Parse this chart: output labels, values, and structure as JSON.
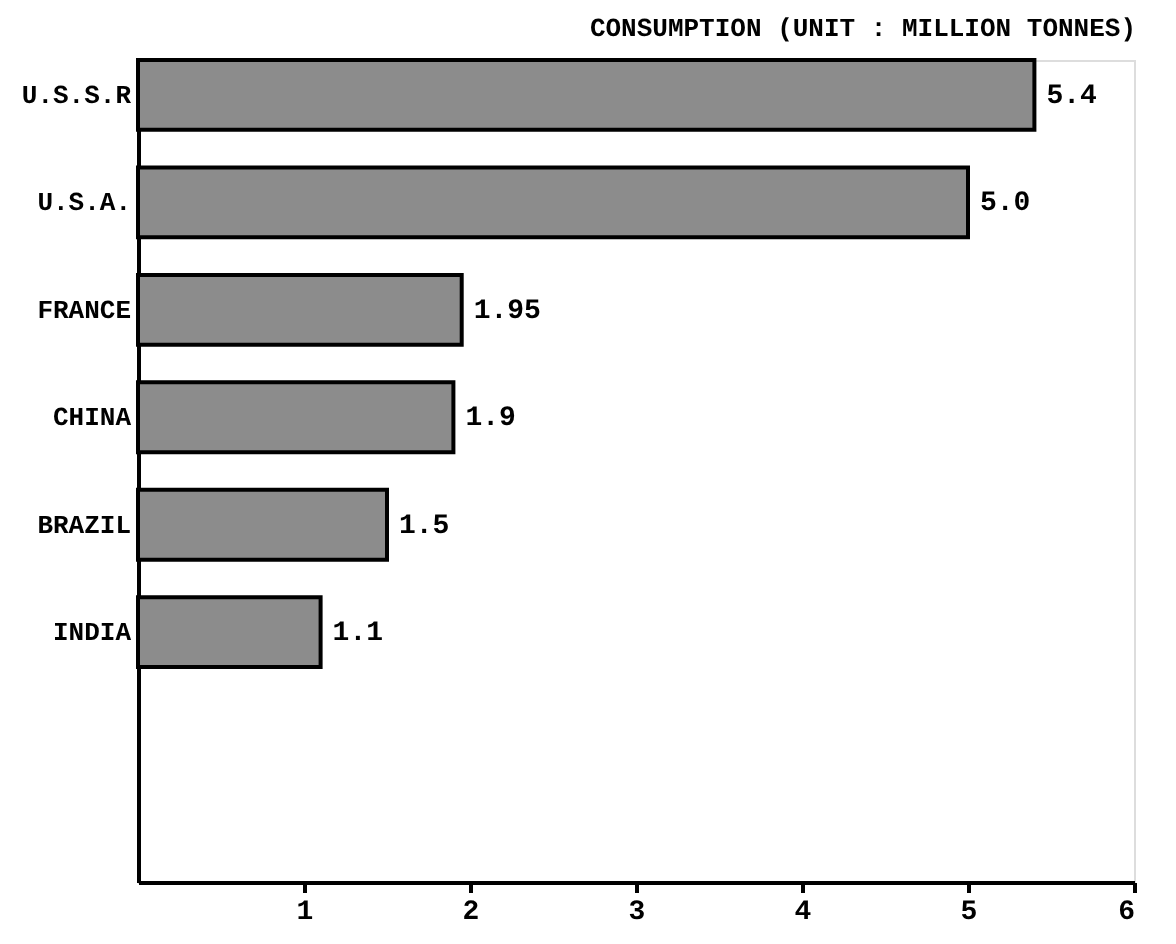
{
  "chart_data": {
    "type": "bar",
    "orientation": "horizontal",
    "title": "CONSUMPTION (UNIT : MILLION TONNES)",
    "categories": [
      "U.S.S.R",
      "U.S.A.",
      "FRANCE",
      "CHINA",
      "BRAZIL",
      "INDIA"
    ],
    "values": [
      5.4,
      5.0,
      1.95,
      1.9,
      1.5,
      1.1
    ],
    "value_labels": [
      "5.4",
      "5.0",
      "1.95",
      "1.9",
      "1.5",
      "1.1"
    ],
    "color": "#8c8c8c",
    "xlim": [
      0,
      6
    ],
    "xticks": [
      1,
      2,
      3,
      4,
      5,
      6
    ],
    "grid": false
  }
}
